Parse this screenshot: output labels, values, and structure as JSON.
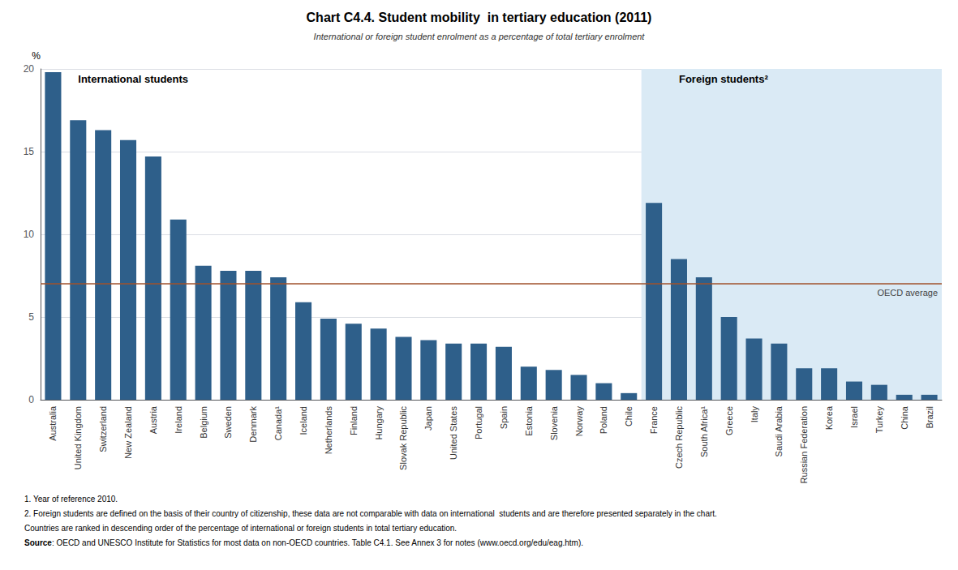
{
  "chart_data": {
    "type": "bar",
    "title": "Chart C4.4. Student mobility  in tertiary education (2011)",
    "subtitle": "International or foreign student enrolment as a percentage of total tertiary enrolment",
    "ylabel": "%",
    "categories": [
      "Australia",
      "United Kingdom",
      "Switzerland",
      "New Zealand",
      "Austria",
      "Ireland",
      "Belgium",
      "Sweden",
      "Denmark",
      "Canada¹",
      "Iceland",
      "Netherlands",
      "Finland",
      "Hungary",
      "Slovak Republic",
      "Japan",
      "United States",
      "Portugal",
      "Spain",
      "Estonia",
      "Slovenia",
      "Norway",
      "Poland",
      "Chile",
      "France",
      "Czech Republic",
      "South Africa¹",
      "Greece",
      "Italy",
      "Saudi Arabia",
      "Russian Federation",
      "Korea",
      "Israel",
      "Turkey",
      "China",
      "Brazil"
    ],
    "values": [
      19.8,
      16.9,
      16.3,
      15.7,
      14.7,
      10.9,
      8.1,
      7.8,
      7.8,
      7.4,
      5.9,
      4.9,
      4.6,
      4.3,
      3.8,
      3.6,
      3.4,
      3.4,
      3.2,
      2.0,
      1.8,
      1.5,
      1.0,
      0.4,
      11.9,
      8.5,
      7.4,
      5.0,
      3.7,
      3.4,
      1.9,
      1.9,
      1.1,
      0.9,
      0.3,
      0.3
    ],
    "color": "#2E5F8A",
    "ylim": [
      0,
      20
    ],
    "yticks": [
      0,
      5,
      10,
      15,
      20
    ],
    "grid": true,
    "reference_line": {
      "value": 7.0,
      "label": "OECD average",
      "color": "#A0522D"
    },
    "sections": [
      {
        "label": "International students",
        "start": "Australia"
      },
      {
        "label": "Foreign students²",
        "start": "France",
        "color": "#DAEAF5"
      }
    ],
    "footnotes": [
      "1. Year of reference 2010.",
      "2. Foreign students are defined on the basis of their country of citizenship, these data are not comparable with data on international  students and are therefore presented separately in the chart.",
      "Countries are ranked in descending order of the percentage of international or foreign students in total tertiary education."
    ],
    "source_label": "Source",
    "source_text": ": OECD and UNESCO Institute for Statistics for most data on non-OECD countries. Table C4.1. See Annex 3 for notes (www.oecd.org/edu/eag.htm)."
  }
}
